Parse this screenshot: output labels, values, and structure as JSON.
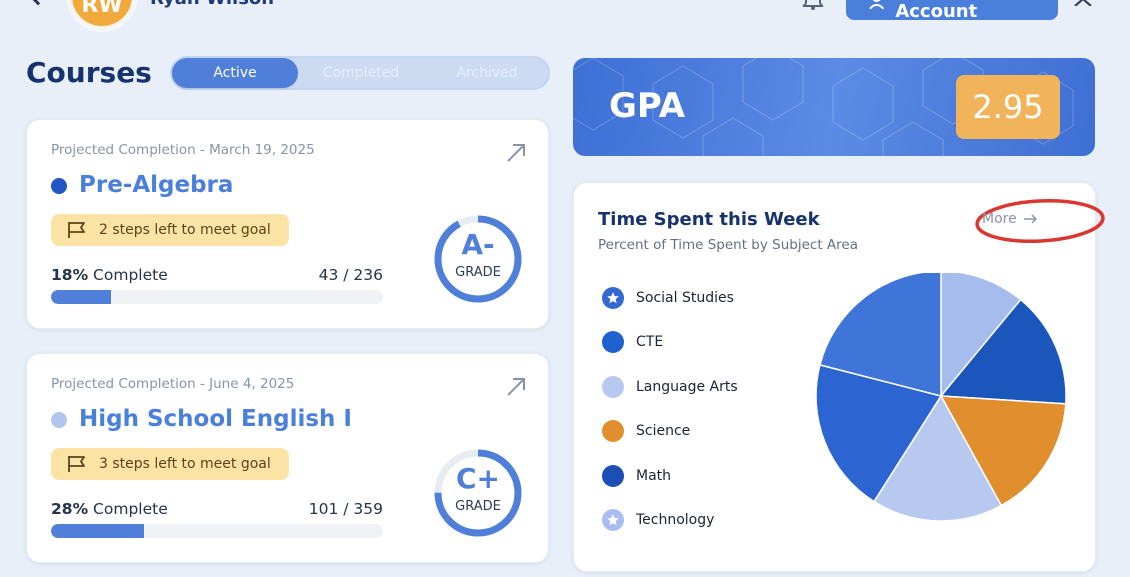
{
  "header": {
    "user_initials": "RW",
    "user_name": "Ryan Wilson",
    "account_button_label": "Student Account"
  },
  "courses": {
    "title": "Courses",
    "tabs": [
      {
        "label": "Active",
        "active": true
      },
      {
        "label": "Completed",
        "active": false
      },
      {
        "label": "Archived",
        "active": false
      }
    ],
    "items": [
      {
        "projected": "Projected Completion - March 19, 2025",
        "name": "Pre-Algebra",
        "dot_color": "#1f55c4",
        "goal": "2 steps left to meet goal",
        "percent_label": "18%",
        "complete_label": "Complete",
        "progress": 0.18,
        "count": "43 / 236",
        "grade": "A-",
        "grade_label": "GRADE",
        "grade_ring_fraction": 0.92
      },
      {
        "projected": "Projected Completion - June 4, 2025",
        "name": "High School English I",
        "dot_color": "#b3c6ef",
        "goal": "3 steps left to meet goal",
        "percent_label": "28%",
        "complete_label": "Complete",
        "progress": 0.28,
        "count": "101 / 359",
        "grade": "C+",
        "grade_label": "GRADE",
        "grade_ring_fraction": 0.75
      }
    ]
  },
  "gpa": {
    "label": "GPA",
    "value": "2.95"
  },
  "time_spent": {
    "title": "Time Spent this Week",
    "subtitle": "Percent of Time Spent by Subject Area",
    "more_label": "More",
    "legend": [
      {
        "label": "Social Studies",
        "color": "#3469d4",
        "icon": "star-icon"
      },
      {
        "label": "CTE",
        "color": "#2060cf",
        "icon": "circle"
      },
      {
        "label": "Language Arts",
        "color": "#b8c9f0",
        "icon": "circle"
      },
      {
        "label": "Science",
        "color": "#e08e2e",
        "icon": "circle"
      },
      {
        "label": "Math",
        "color": "#1b4fb5",
        "icon": "circle"
      },
      {
        "label": "Technology",
        "color": "#a9bdf0",
        "icon": "star-icon"
      }
    ]
  },
  "chart_data": {
    "type": "pie",
    "title": "Time Spent this Week",
    "subtitle": "Percent of Time Spent by Subject Area",
    "slices": [
      {
        "label": "Technology",
        "value": 11,
        "color": "#a5bcec"
      },
      {
        "label": "Math",
        "value": 15,
        "color": "#1b56bc"
      },
      {
        "label": "Science",
        "value": 16,
        "color": "#e08e2e"
      },
      {
        "label": "Language Arts",
        "value": 17,
        "color": "#b8c9f0"
      },
      {
        "label": "CTE",
        "value": 20,
        "color": "#2c65d1"
      },
      {
        "label": "Social Studies",
        "value": 21,
        "color": "#3f74d9"
      }
    ],
    "legend_placement": "left"
  }
}
